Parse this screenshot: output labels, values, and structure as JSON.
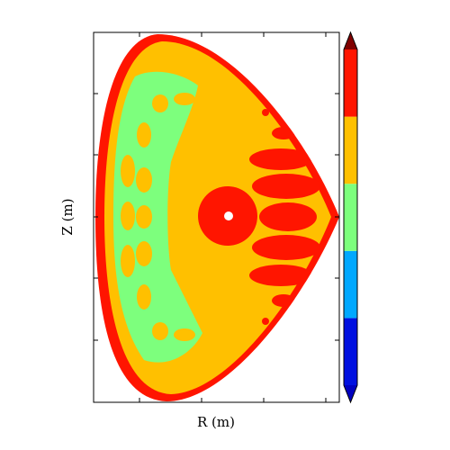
{
  "chart_data": {
    "type": "contour",
    "xlabel": "R (m)",
    "ylabel": "Z (m)",
    "colors": [
      "#0010e0",
      "#00a8ff",
      "#7dff7d",
      "#ffc000",
      "#ff1500"
    ],
    "under_color": "#0000c0",
    "over_color": "#800000"
  }
}
